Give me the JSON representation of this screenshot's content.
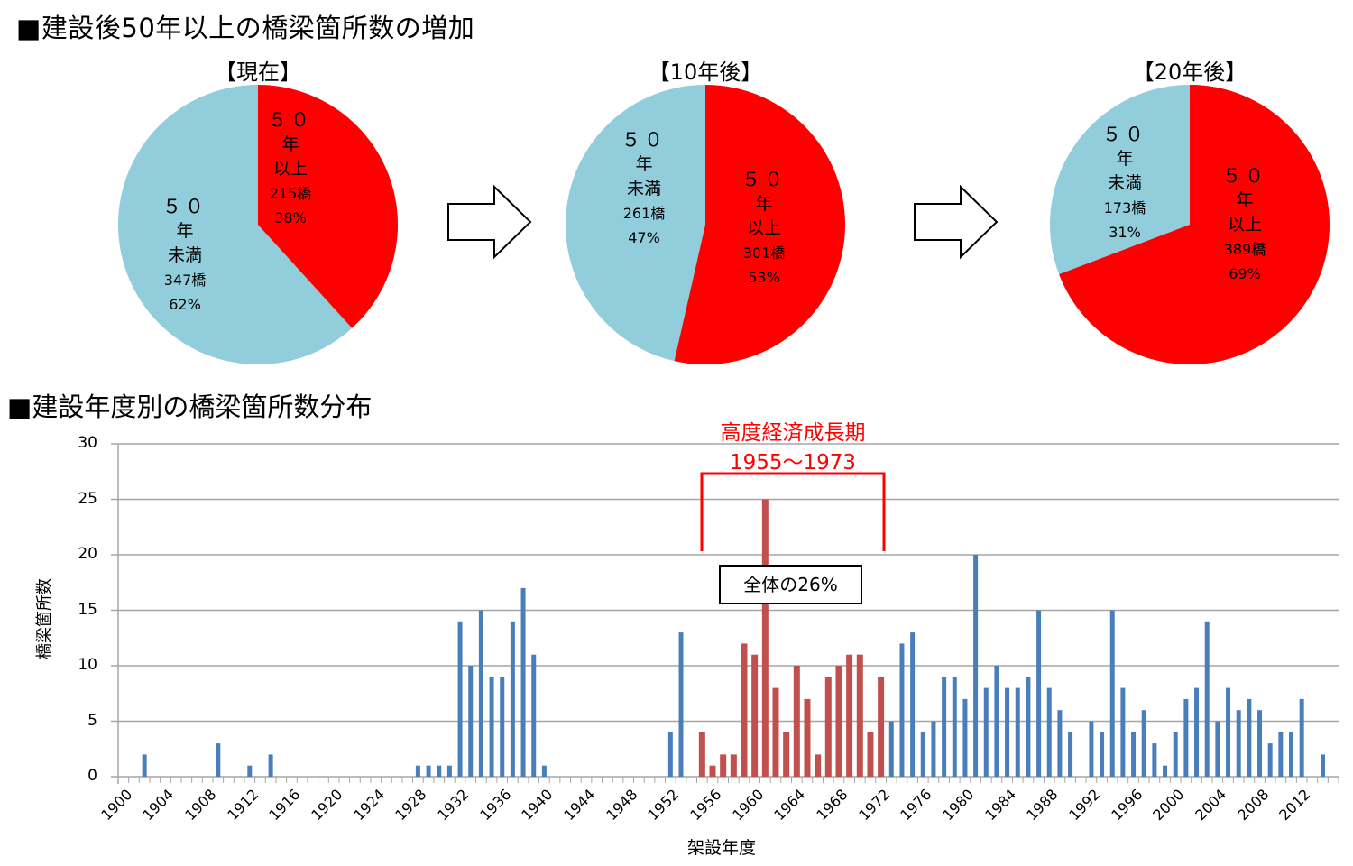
{
  "heading_top": "■建設後50年以上の橋梁箇所数の増加",
  "heading_bottom": "■建設年度別の橋梁箇所数分布",
  "colors": {
    "over50": "#ff0000",
    "under50": "#92cddc",
    "bar_blue": "#4a7ebb",
    "bar_red": "#c0504d",
    "annotation": "#ff0000"
  },
  "chart_data": [
    {
      "type": "pie",
      "title": "【現在】",
      "slices": [
        {
          "name": "50年以上",
          "label_top": "５０",
          "label_mid": "年",
          "label_kind": "以上",
          "count_label": "215橋",
          "percent_label": "38%",
          "value": 215,
          "percent": 38
        },
        {
          "name": "50年未満",
          "label_top": "５０",
          "label_mid": "年",
          "label_kind": "未満",
          "count_label": "347橋",
          "percent_label": "62%",
          "value": 347,
          "percent": 62
        }
      ]
    },
    {
      "type": "pie",
      "title": "【10年後】",
      "slices": [
        {
          "name": "50年以上",
          "label_top": "５０",
          "label_mid": "年",
          "label_kind": "以上",
          "count_label": "301橋",
          "percent_label": "53%",
          "value": 301,
          "percent": 53
        },
        {
          "name": "50年未満",
          "label_top": "５０",
          "label_mid": "年",
          "label_kind": "未満",
          "count_label": "261橋",
          "percent_label": "47%",
          "value": 261,
          "percent": 47
        }
      ]
    },
    {
      "type": "pie",
      "title": "【20年後】",
      "slices": [
        {
          "name": "50年以上",
          "label_top": "５０",
          "label_mid": "年",
          "label_kind": "以上",
          "count_label": "389橋",
          "percent_label": "69%",
          "value": 389,
          "percent": 69
        },
        {
          "name": "50年未満",
          "label_top": "５０",
          "label_mid": "年",
          "label_kind": "未満",
          "count_label": "173橋",
          "percent_label": "31%",
          "value": 173,
          "percent": 31
        }
      ]
    },
    {
      "type": "bar",
      "xlabel": "架設年度",
      "ylabel": "橋梁箇所数",
      "ylim": [
        0,
        30
      ],
      "yticks": [
        "0",
        "5",
        "10",
        "15",
        "20",
        "25",
        "30"
      ],
      "x_start": 1900,
      "x_end": 2015,
      "xtick_labels": [
        "1900",
        "1904",
        "1908",
        "1912",
        "1916",
        "1920",
        "1924",
        "1928",
        "1932",
        "1936",
        "1940",
        "1944",
        "1948",
        "1952",
        "1956",
        "1960",
        "1964",
        "1968",
        "1972",
        "1976",
        "1980",
        "1984",
        "1988",
        "1992",
        "1996",
        "2000",
        "2004",
        "2008",
        "2012"
      ],
      "grid": true,
      "highlight_range": [
        1955,
        1972
      ],
      "values": {
        "1902": 2,
        "1909": 3,
        "1912": 1,
        "1914": 2,
        "1928": 1,
        "1929": 1,
        "1930": 1,
        "1931": 1,
        "1932": 14,
        "1933": 10,
        "1934": 15,
        "1935": 9,
        "1936": 9,
        "1937": 14,
        "1938": 17,
        "1939": 11,
        "1940": 1,
        "1952": 4,
        "1953": 13,
        "1955": 4,
        "1956": 1,
        "1957": 2,
        "1958": 2,
        "1959": 12,
        "1960": 11,
        "1961": 25,
        "1962": 8,
        "1963": 4,
        "1964": 10,
        "1965": 7,
        "1966": 2,
        "1967": 9,
        "1968": 10,
        "1969": 11,
        "1970": 11,
        "1971": 4,
        "1972": 9,
        "1973": 5,
        "1974": 12,
        "1975": 13,
        "1976": 4,
        "1977": 5,
        "1978": 9,
        "1979": 9,
        "1980": 7,
        "1981": 20,
        "1982": 8,
        "1983": 10,
        "1984": 8,
        "1985": 8,
        "1986": 9,
        "1987": 15,
        "1988": 8,
        "1989": 6,
        "1990": 4,
        "1992": 5,
        "1993": 4,
        "1994": 15,
        "1995": 8,
        "1996": 4,
        "1997": 6,
        "1998": 3,
        "1999": 1,
        "2000": 4,
        "2001": 7,
        "2002": 8,
        "2003": 14,
        "2004": 5,
        "2005": 8,
        "2006": 6,
        "2007": 7,
        "2008": 6,
        "2009": 3,
        "2010": 4,
        "2011": 4,
        "2012": 7,
        "2014": 2
      },
      "annotation_title": "高度経済成長期",
      "annotation_range": "1955～1973",
      "annotation_box": "全体の26%"
    }
  ]
}
